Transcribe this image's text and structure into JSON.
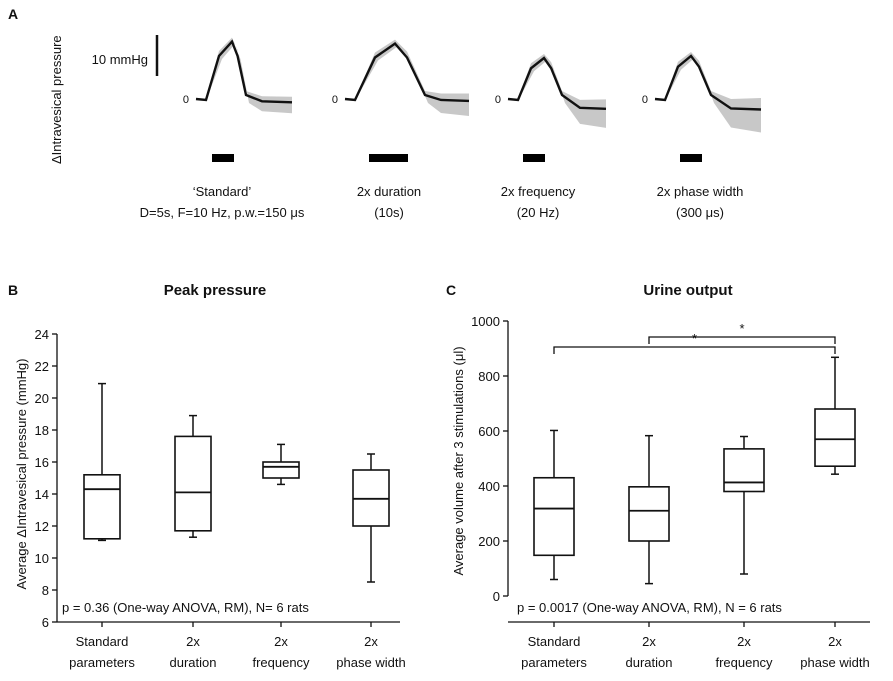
{
  "chart_data": [
    {
      "panel": "A",
      "type": "line",
      "ylabel": "ΔIntravesical pressure",
      "scalebar_label": "10 mmHg",
      "zero_label": "0",
      "traces": [
        {
          "label_line1": "‘Standard’",
          "label_line2": "D=5s, F=10 Hz, p.w.=150 μs",
          "stim_duration_s": 5,
          "baseline": 0,
          "peak_mmHg": 14,
          "end_mmHg": -0.5
        },
        {
          "label_line1": "2x duration",
          "label_line2": "(10s)",
          "stim_duration_s": 10,
          "baseline": 0,
          "peak_mmHg": 13.5,
          "end_mmHg": -0.3
        },
        {
          "label_line1": "2x frequency",
          "label_line2": "(20 Hz)",
          "stim_duration_s": 5,
          "baseline": 0,
          "peak_mmHg": 10,
          "end_mmHg": -1.5
        },
        {
          "label_line1": "2x phase width",
          "label_line2": "(300 μs)",
          "stim_duration_s": 5,
          "baseline": 0,
          "peak_mmHg": 10.5,
          "end_mmHg": -1.6
        }
      ]
    },
    {
      "panel": "B",
      "type": "box",
      "title": "Peak pressure",
      "ylabel": "Average ΔIntravesical pressure (mmHg)",
      "ylim": [
        6,
        24
      ],
      "yticks": [
        "6",
        "8",
        "10",
        "12",
        "14",
        "16",
        "18",
        "20",
        "22",
        "24"
      ],
      "categories": [
        {
          "line1": "Standard",
          "line2": "parameters"
        },
        {
          "line1": "2x",
          "line2": "duration"
        },
        {
          "line1": "2x",
          "line2": "frequency"
        },
        {
          "line1": "2x",
          "line2": "phase width"
        }
      ],
      "boxes": [
        {
          "min": 11.1,
          "q1": 11.2,
          "median": 14.3,
          "q3": 15.2,
          "max": 20.9
        },
        {
          "min": 11.3,
          "q1": 11.7,
          "median": 14.1,
          "q3": 17.6,
          "max": 18.9
        },
        {
          "min": 14.6,
          "q1": 15.0,
          "median": 15.7,
          "q3": 16.0,
          "max": 17.1
        },
        {
          "min": 8.5,
          "q1": 12.0,
          "median": 13.7,
          "q3": 15.5,
          "max": 16.5
        }
      ],
      "annotation": "p = 0.36 (One-way ANOVA, RM), N= 6 rats"
    },
    {
      "panel": "C",
      "type": "box",
      "title": "Urine output",
      "ylabel": "Average  volume after 3 stimulations (μl)",
      "ylim": [
        0,
        1000
      ],
      "yticks": [
        "0",
        "200",
        "400",
        "600",
        "800",
        "1000"
      ],
      "categories": [
        {
          "line1": "Standard",
          "line2": "parameters"
        },
        {
          "line1": "2x",
          "line2": "duration"
        },
        {
          "line1": "2x",
          "line2": "frequency"
        },
        {
          "line1": "2x",
          "line2": "phase width"
        }
      ],
      "boxes": [
        {
          "min": 60,
          "q1": 148,
          "median": 318,
          "q3": 430,
          "max": 602
        },
        {
          "min": 45,
          "q1": 200,
          "median": 310,
          "q3": 397,
          "max": 583
        },
        {
          "min": 80,
          "q1": 380,
          "median": 413,
          "q3": 535,
          "max": 580
        },
        {
          "min": 443,
          "q1": 472,
          "median": 570,
          "q3": 680,
          "max": 868
        }
      ],
      "significance": [
        {
          "from": 0,
          "to": 3,
          "label": "*"
        },
        {
          "from": 1,
          "to": 3,
          "label": "*"
        }
      ],
      "annotation": "p = 0.0017 (One-way ANOVA, RM), N = 6 rats"
    }
  ]
}
